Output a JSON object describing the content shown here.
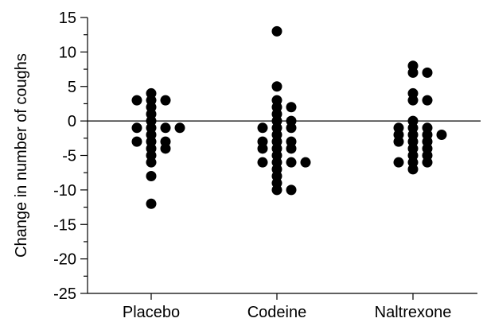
{
  "chart_data": {
    "type": "scatter",
    "title": "",
    "xlabel": "",
    "ylabel": "Change in number of coughs",
    "categories": [
      "Placebo",
      "Codeine",
      "Naltrexone"
    ],
    "ylim": [
      -25,
      15
    ],
    "yticks": [
      15,
      10,
      5,
      0,
      -5,
      -10,
      -15,
      -20,
      -25
    ],
    "reference_line_y": 0,
    "grid": false,
    "marker_color": "#000000",
    "series": [
      {
        "category": "Placebo",
        "points": [
          {
            "offset": -1,
            "y": 3
          },
          {
            "offset": 1,
            "y": 3
          },
          {
            "offset": 0,
            "y": 4
          },
          {
            "offset": 0,
            "y": 3
          },
          {
            "offset": 0,
            "y": 2
          },
          {
            "offset": 0,
            "y": 1
          },
          {
            "offset": 0,
            "y": 0
          },
          {
            "offset": 0,
            "y": -1
          },
          {
            "offset": 0,
            "y": -2
          },
          {
            "offset": 0,
            "y": -3
          },
          {
            "offset": 0,
            "y": -4
          },
          {
            "offset": 0,
            "y": -5
          },
          {
            "offset": 0,
            "y": -6
          },
          {
            "offset": 0,
            "y": -8
          },
          {
            "offset": 0,
            "y": -12
          },
          {
            "offset": -1,
            "y": -1
          },
          {
            "offset": 1,
            "y": -1
          },
          {
            "offset": 2,
            "y": -1
          },
          {
            "offset": -1,
            "y": -3
          },
          {
            "offset": 1,
            "y": -3
          },
          {
            "offset": 1,
            "y": -4
          }
        ]
      },
      {
        "category": "Codeine",
        "points": [
          {
            "offset": 0,
            "y": 13
          },
          {
            "offset": 0,
            "y": 5
          },
          {
            "offset": 0,
            "y": 3
          },
          {
            "offset": 0,
            "y": 2
          },
          {
            "offset": 1,
            "y": 2
          },
          {
            "offset": 0,
            "y": 1
          },
          {
            "offset": 0,
            "y": 0
          },
          {
            "offset": 1,
            "y": 0
          },
          {
            "offset": -1,
            "y": -1
          },
          {
            "offset": 0,
            "y": -1
          },
          {
            "offset": 1,
            "y": -1
          },
          {
            "offset": 0,
            "y": -2
          },
          {
            "offset": -1,
            "y": -3
          },
          {
            "offset": 0,
            "y": -3
          },
          {
            "offset": 1,
            "y": -3
          },
          {
            "offset": -1,
            "y": -4
          },
          {
            "offset": 0,
            "y": -4
          },
          {
            "offset": 1,
            "y": -4
          },
          {
            "offset": 0,
            "y": -5
          },
          {
            "offset": -1,
            "y": -6
          },
          {
            "offset": 0,
            "y": -6
          },
          {
            "offset": 1,
            "y": -6
          },
          {
            "offset": 2,
            "y": -6
          },
          {
            "offset": 0,
            "y": -7
          },
          {
            "offset": 0,
            "y": -8
          },
          {
            "offset": 0,
            "y": -9
          },
          {
            "offset": 0,
            "y": -10
          },
          {
            "offset": 1,
            "y": -10
          }
        ]
      },
      {
        "category": "Naltrexone",
        "points": [
          {
            "offset": 0,
            "y": 8
          },
          {
            "offset": 1,
            "y": 7
          },
          {
            "offset": 0,
            "y": 7
          },
          {
            "offset": 0,
            "y": 4
          },
          {
            "offset": 0,
            "y": 3
          },
          {
            "offset": 1,
            "y": 3
          },
          {
            "offset": 0,
            "y": 0
          },
          {
            "offset": -1,
            "y": -1
          },
          {
            "offset": 0,
            "y": -1
          },
          {
            "offset": 1,
            "y": -1
          },
          {
            "offset": -1,
            "y": -2
          },
          {
            "offset": 0,
            "y": -2
          },
          {
            "offset": 1,
            "y": -2
          },
          {
            "offset": 2,
            "y": -2
          },
          {
            "offset": -1,
            "y": -3
          },
          {
            "offset": 0,
            "y": -3
          },
          {
            "offset": 1,
            "y": -3
          },
          {
            "offset": 0,
            "y": -4
          },
          {
            "offset": 1,
            "y": -4
          },
          {
            "offset": 0,
            "y": -5
          },
          {
            "offset": 1,
            "y": -5
          },
          {
            "offset": -1,
            "y": -6
          },
          {
            "offset": 0,
            "y": -6
          },
          {
            "offset": 1,
            "y": -6
          },
          {
            "offset": 0,
            "y": -7
          }
        ]
      }
    ]
  }
}
